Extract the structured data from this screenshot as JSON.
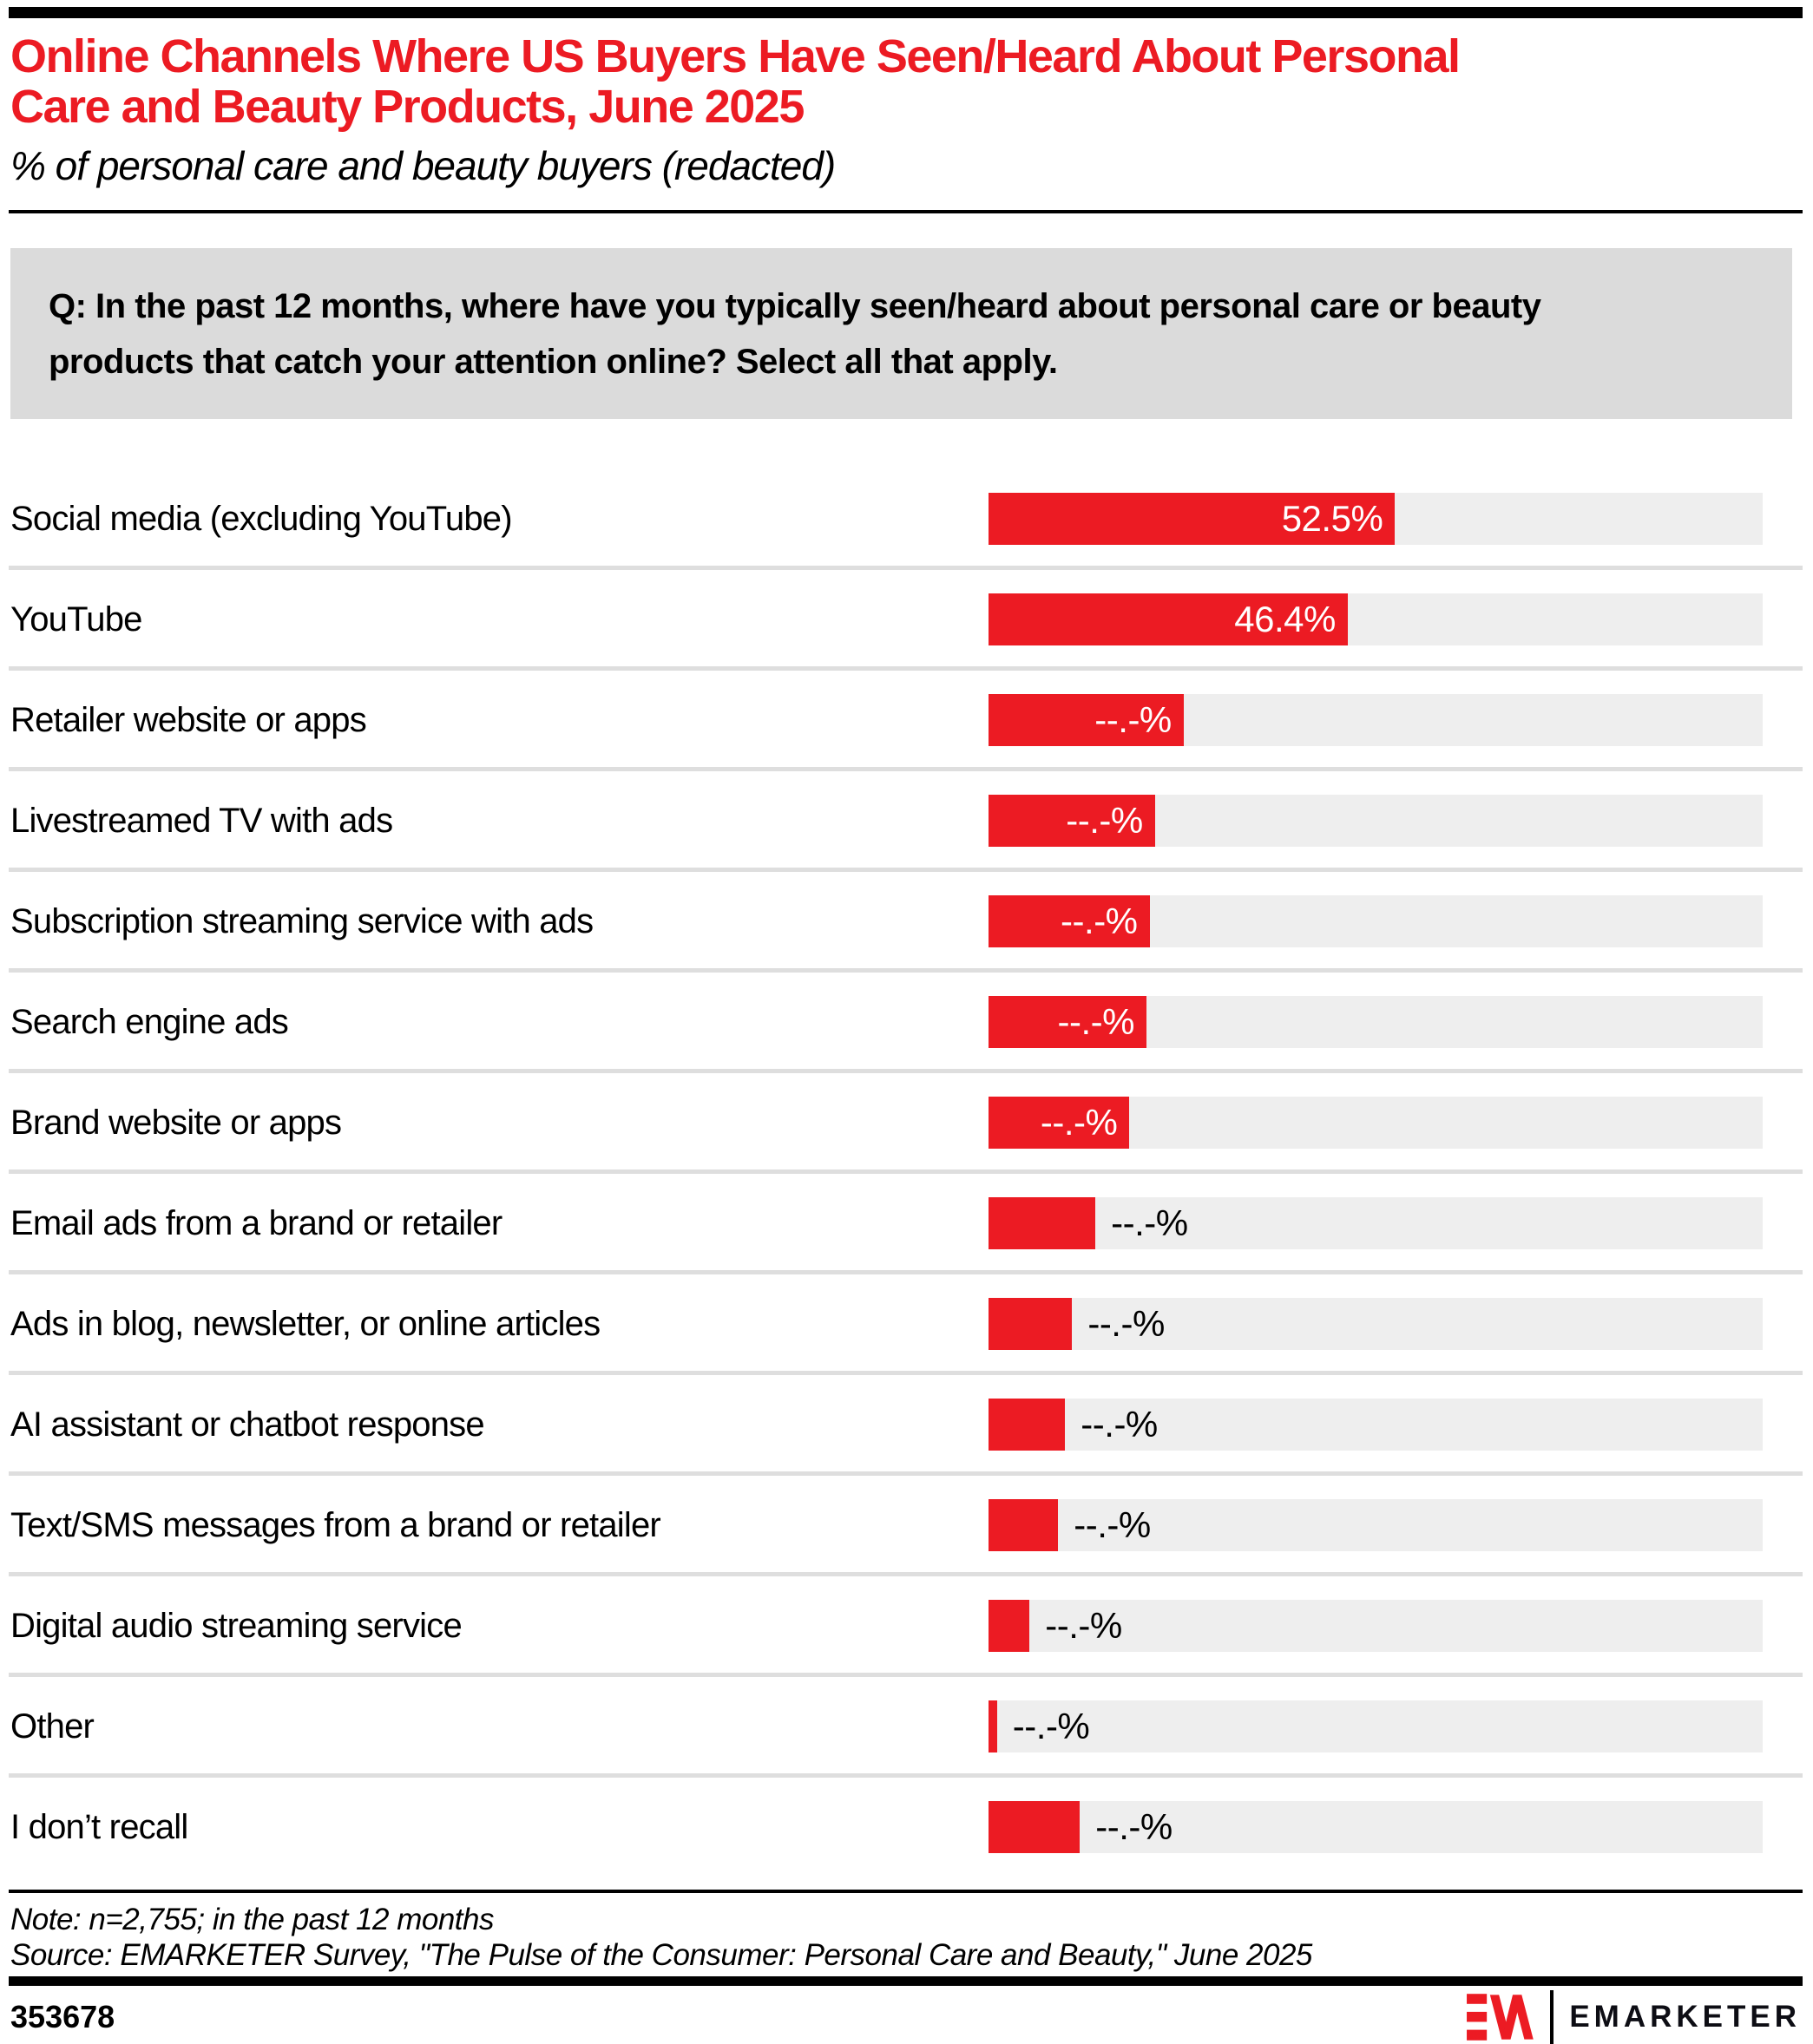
{
  "page": {
    "title_lines": [
      "Online Channels Where US Buyers Have Seen/Heard About Personal",
      "Care and Beauty Products, June 2025"
    ],
    "subtitle": "% of personal care and beauty buyers (redacted)",
    "question_lines": [
      "Q: In the past 12 months, where have you typically seen/heard about personal care or beauty",
      "products that catch your attention online? Select all that apply."
    ],
    "note": "Note: n=2,755; in the past 12 months",
    "source": "Source: EMARKETER Survey, \"The Pulse of the Consumer: Personal Care and Beauty,\" June 2025",
    "chart_id": "353678",
    "brand": {
      "wordmark": "EMARKETER",
      "mark_name": "em-logo-mark"
    }
  },
  "colors": {
    "accent_red": "#EC1B23",
    "title_red": "#EC1B23",
    "question_box_bg": "#DBDBDB",
    "bar_track_gray": "#EEEEEE",
    "row_separator": "#DEDEDE",
    "value_label_inside": "#FFFFFF",
    "value_label_outside": "#000000"
  },
  "chart_data": {
    "type": "bar",
    "orientation": "horizontal",
    "unit": "%",
    "xlim": [
      0,
      100
    ],
    "title": "Online Channels Where US Buyers Have Seen/Heard About Personal Care and Beauty Products, June 2025",
    "subtitle": "% of personal care and beauty buyers (redacted)",
    "value_note": "All values except the top two are redacted in the source image and shown as '--.-%'; bar_pct is the bar length read off the 0-100% track.",
    "rows": [
      {
        "label": "Social media (excluding YouTube)",
        "value_label": "52.5%",
        "value": 52.5,
        "bar_pct": 52.5,
        "label_inside": true
      },
      {
        "label": "YouTube",
        "value_label": "46.4%",
        "value": 46.4,
        "bar_pct": 46.4,
        "label_inside": true
      },
      {
        "label": "Retailer website or apps",
        "value_label": "--.-%",
        "value": null,
        "bar_pct": 25.2,
        "label_inside": true
      },
      {
        "label": "Livestreamed TV with ads",
        "value_label": "--.-%",
        "value": null,
        "bar_pct": 21.5,
        "label_inside": true
      },
      {
        "label": "Subscription streaming service with ads",
        "value_label": "--.-%",
        "value": null,
        "bar_pct": 20.8,
        "label_inside": true
      },
      {
        "label": "Search engine ads",
        "value_label": "--.-%",
        "value": null,
        "bar_pct": 20.4,
        "label_inside": true
      },
      {
        "label": "Brand website or apps",
        "value_label": "--.-%",
        "value": null,
        "bar_pct": 18.2,
        "label_inside": true
      },
      {
        "label": "Email ads from a brand or retailer",
        "value_label": "--.-%",
        "value": null,
        "bar_pct": 13.8,
        "label_inside": false
      },
      {
        "label": "Ads in blog, newsletter, or online articles",
        "value_label": "--.-%",
        "value": null,
        "bar_pct": 10.8,
        "label_inside": false
      },
      {
        "label": "AI assistant or chatbot response",
        "value_label": "--.-%",
        "value": null,
        "bar_pct": 9.9,
        "label_inside": false
      },
      {
        "label": "Text/SMS messages from a brand or retailer",
        "value_label": "--.-%",
        "value": null,
        "bar_pct": 9.0,
        "label_inside": false
      },
      {
        "label": "Digital audio streaming service",
        "value_label": "--.-%",
        "value": null,
        "bar_pct": 5.3,
        "label_inside": false
      },
      {
        "label": "Other",
        "value_label": "--.-%",
        "value": null,
        "bar_pct": 1.1,
        "label_inside": false
      },
      {
        "label": "I don’t recall",
        "value_label": "--.-%",
        "value": null,
        "bar_pct": 11.8,
        "label_inside": false
      }
    ]
  }
}
